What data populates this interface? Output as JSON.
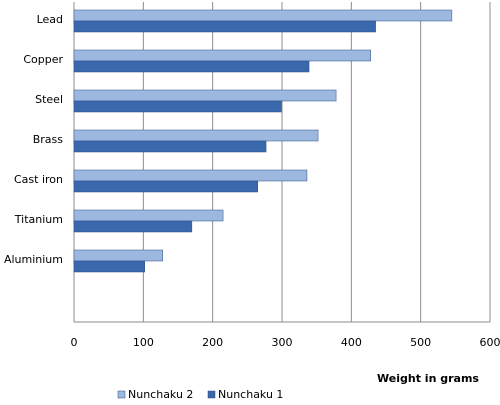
{
  "chart_data": {
    "type": "barh",
    "categories": [
      "Lead",
      "Copper",
      "Steel",
      "Brass",
      "Cast iron",
      "Titanium",
      "Aluminium",
      null
    ],
    "series": [
      {
        "name": "Nunchaku 2",
        "color": "#9db8e0",
        "values": [
          545,
          428,
          378,
          352,
          336,
          215,
          128,
          null
        ]
      },
      {
        "name": "Nunchaku 1",
        "color": "#3a68ad",
        "values": [
          435,
          339,
          299,
          277,
          265,
          170,
          102,
          null
        ]
      }
    ],
    "xlim": [
      0,
      600
    ],
    "xticks": [
      0,
      100,
      200,
      300,
      400,
      500,
      600
    ],
    "x_label": "Weight in grams",
    "grid": true,
    "legend": "bottom"
  }
}
